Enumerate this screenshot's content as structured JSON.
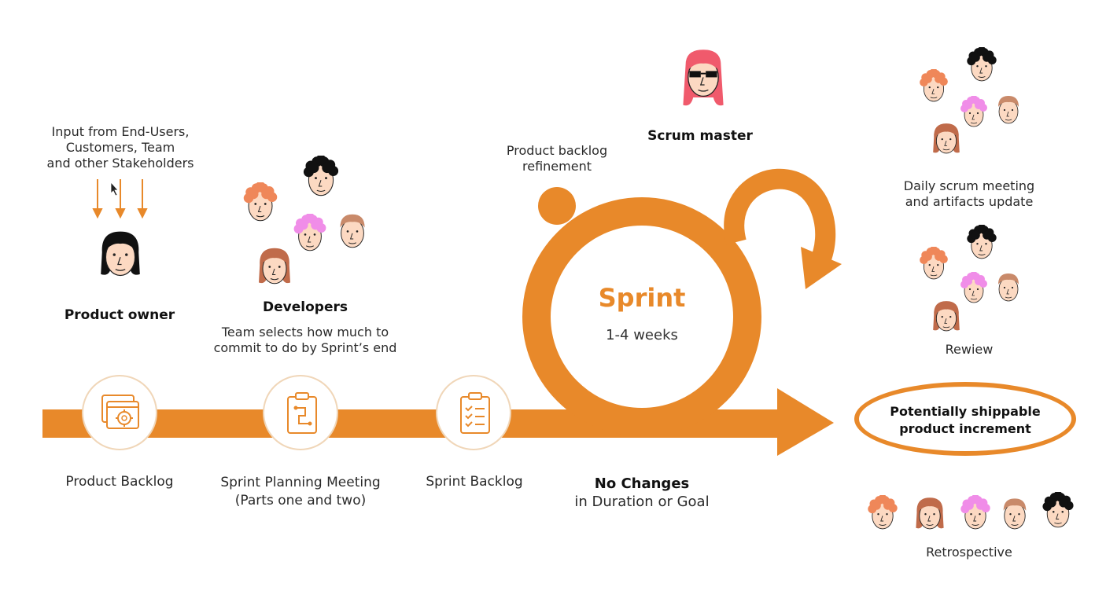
{
  "colors": {
    "accent": "#e8892a",
    "skin": "#fcd9c2",
    "hair_orange": "#ef8759",
    "hair_black": "#111111",
    "hair_pink": "#f08de8",
    "hair_brown": "#c06b4a",
    "hair_red": "#f05a6c",
    "hair_light_brown": "#c98a6a"
  },
  "inputs": {
    "line1": "Input from End-Users,",
    "line2": "Customers, Team",
    "line3": "and other Stakeholders"
  },
  "roles": {
    "product_owner": "Product  owner",
    "developers": "Developers",
    "developers_desc_1": "Team selects how much to",
    "developers_desc_2": "commit to do by Sprint’s end",
    "scrum_master": "Scrum master"
  },
  "refinement": {
    "line1": "Product backlog",
    "line2": "refinement"
  },
  "sprint": {
    "title": "Sprint",
    "duration": "1-4 weeks"
  },
  "stages": {
    "product_backlog": "Product  Backlog",
    "planning_1": "Sprint Planning Meeting",
    "planning_2": "(Parts one and two)",
    "sprint_backlog": "Sprint Backlog",
    "no_changes_1": "No Changes",
    "no_changes_2": "in Duration or Goal"
  },
  "events": {
    "daily_1": "Daily scrum meeting",
    "daily_2": "and artifacts update",
    "review": "Rewiew",
    "retro": "Retrospective"
  },
  "increment": {
    "line1": "Potentially shippable",
    "line2": "product increment"
  },
  "icons": {
    "backlog": "gear-window-icon",
    "planning": "clipboard-plan-icon",
    "sprint_backlog": "checklist-icon",
    "cursor": "mouse-pointer-icon"
  }
}
